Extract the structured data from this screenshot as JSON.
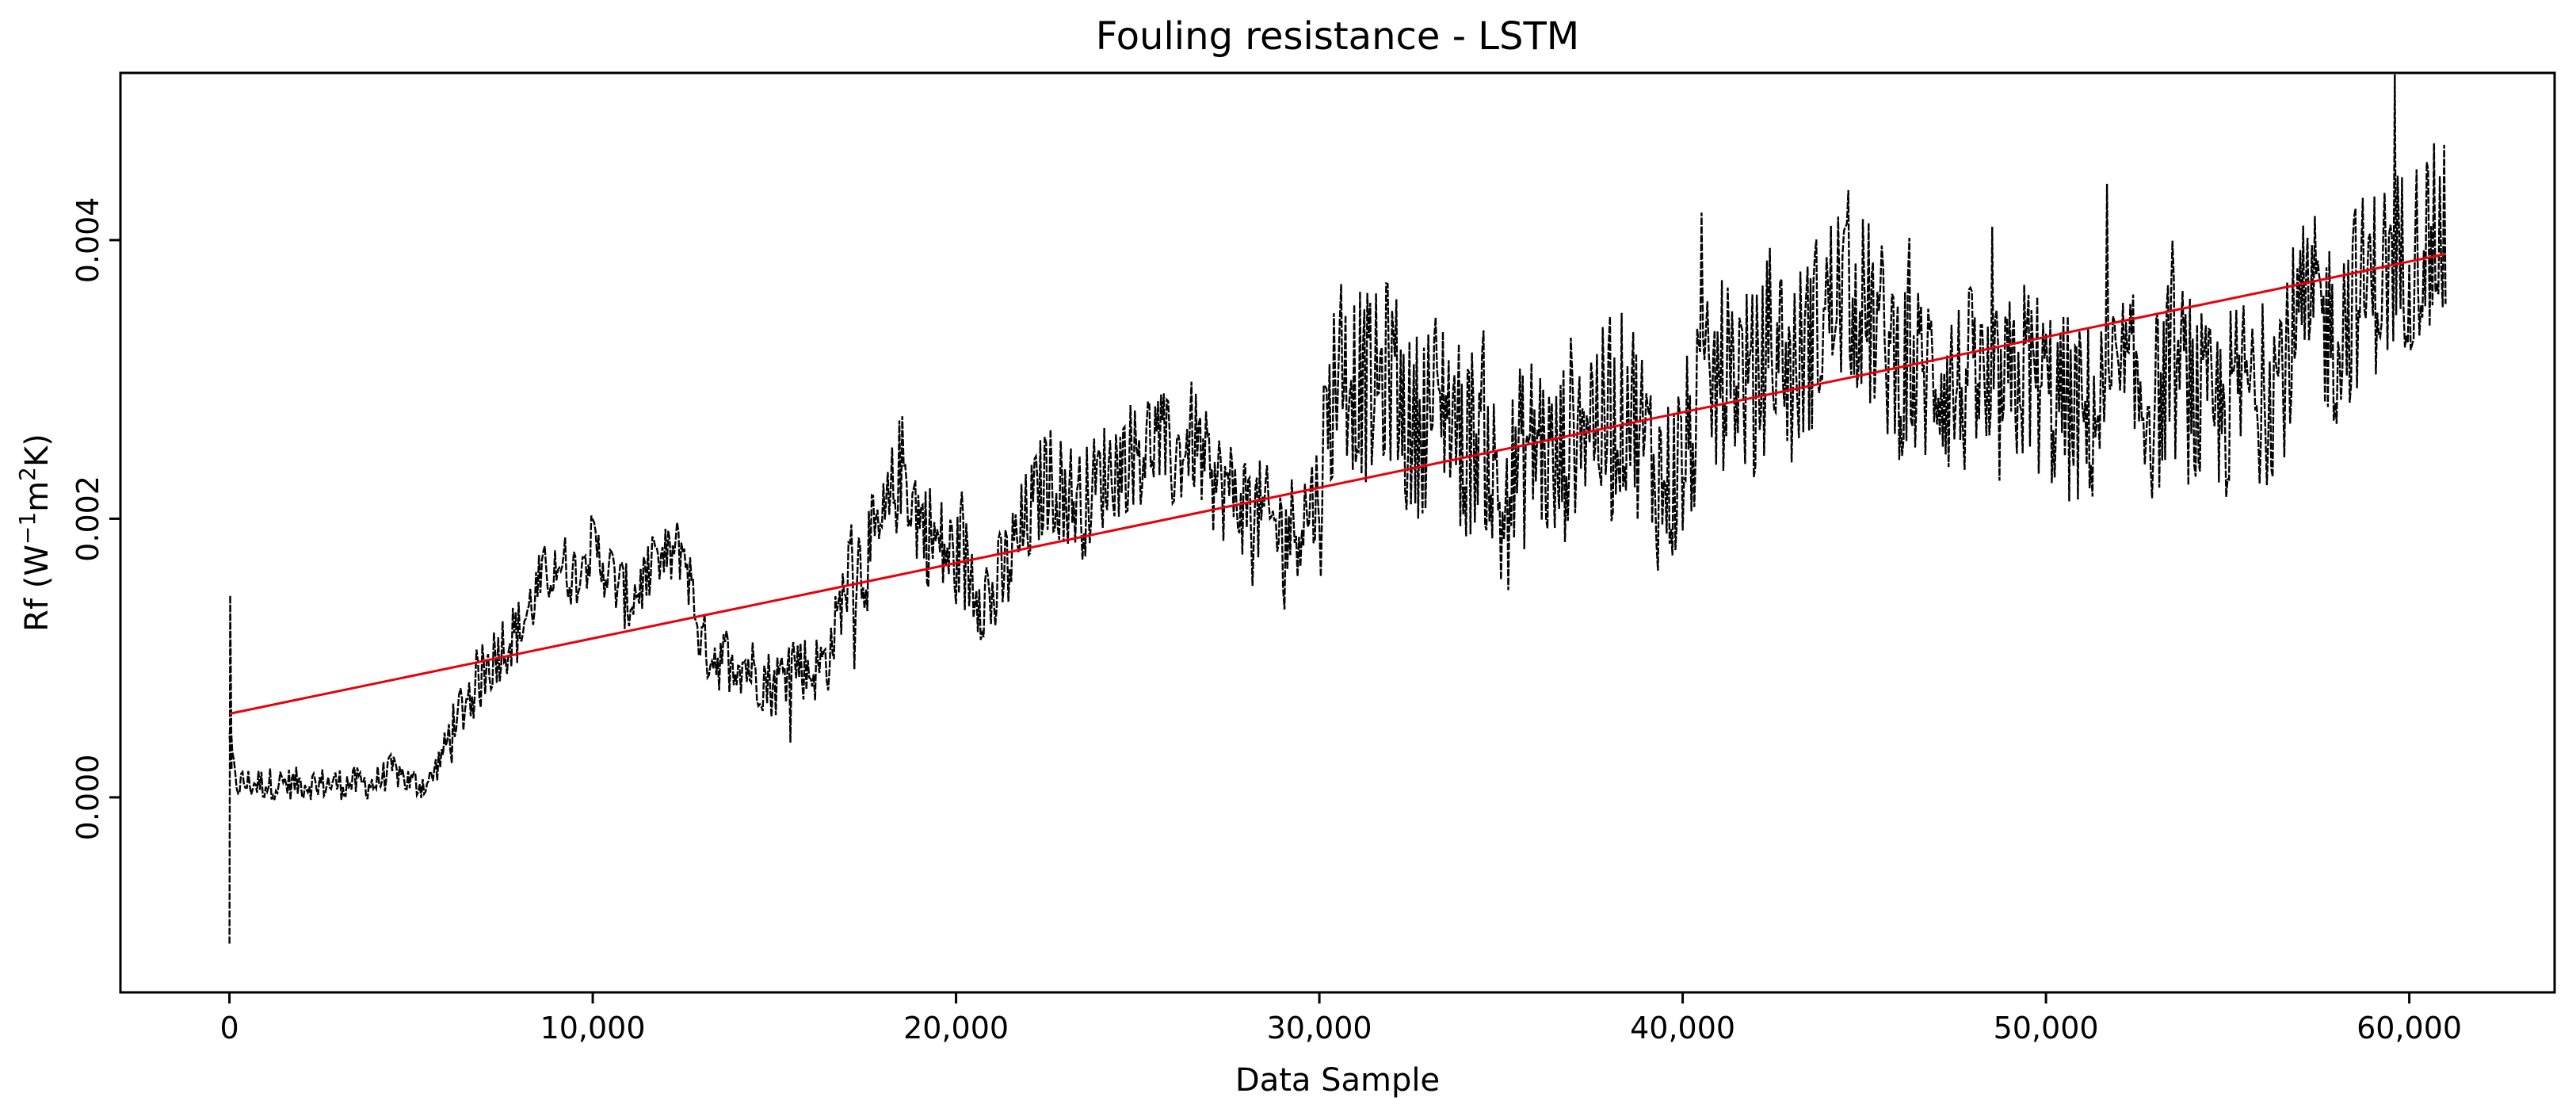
{
  "chart_data": {
    "type": "line",
    "title": "Fouling resistance - LSTM",
    "xlabel": "Data Sample",
    "ylabel": {
      "base": "Rf (W",
      "sup1": "−1",
      "mid": "m",
      "sup2": "2",
      "end": "K)"
    },
    "xlim": [
      -3000,
      64000
    ],
    "ylim": [
      -0.0014,
      0.0052
    ],
    "x_ticks": [
      0,
      10000,
      20000,
      30000,
      40000,
      50000,
      60000
    ],
    "x_tick_labels": [
      "0",
      "10,000",
      "20,000",
      "30,000",
      "40,000",
      "50,000",
      "60,000"
    ],
    "y_ticks": [
      0.0,
      0.002,
      0.004
    ],
    "y_tick_labels": [
      "0.000",
      "0.002",
      "0.004"
    ],
    "grid": false,
    "legend": "none",
    "series": [
      {
        "style": "black-dashed-noisy",
        "color": "#000000",
        "x": [
          0,
          150,
          400,
          1000,
          2000,
          3000,
          4000,
          4500,
          5000,
          5500,
          6000,
          6500,
          7000,
          7500,
          8000,
          8500,
          9000,
          9500,
          10000,
          10500,
          11000,
          11500,
          12000,
          12500,
          13000,
          13500,
          14000,
          14500,
          15000,
          15500,
          16000,
          16500,
          17000,
          17500,
          18000,
          18500,
          19000,
          19500,
          20000,
          20500,
          21000,
          21500,
          22000,
          22500,
          23000,
          23500,
          24000,
          24500,
          25000,
          25500,
          26000,
          26500,
          27000,
          27500,
          28000,
          28500,
          29000,
          29500,
          30000,
          30500,
          31000,
          31500,
          32000,
          32500,
          33000,
          33500,
          34000,
          34500,
          35000,
          35500,
          36000,
          36500,
          37000,
          37500,
          38000,
          38500,
          39000,
          39500,
          40000,
          40500,
          41000,
          41500,
          42000,
          42500,
          43000,
          43500,
          44000,
          44500,
          45000,
          45500,
          46000,
          46500,
          47000,
          47500,
          48000,
          48500,
          49000,
          49500,
          50000,
          50500,
          51000,
          51500,
          52000,
          52500,
          53000,
          53500,
          54000,
          54500,
          55000,
          55500,
          56000,
          56500,
          57000,
          57500,
          58000,
          58500,
          59000,
          59500,
          60000,
          60500,
          61000
        ],
        "values": [
          0.0005,
          0.0001,
          0.0001,
          0.0001,
          0.0001,
          0.0001,
          0.0001,
          0.0002,
          0.0001,
          0.0001,
          0.0004,
          0.0007,
          0.0009,
          0.0011,
          0.0012,
          0.0015,
          0.0017,
          0.0016,
          0.0018,
          0.0016,
          0.0014,
          0.0016,
          0.0017,
          0.0018,
          0.0011,
          0.001,
          0.001,
          0.0009,
          0.0008,
          0.001,
          0.0009,
          0.001,
          0.0016,
          0.0017,
          0.0019,
          0.0024,
          0.002,
          0.0018,
          0.0017,
          0.0016,
          0.0014,
          0.0017,
          0.002,
          0.0023,
          0.0022,
          0.0021,
          0.0023,
          0.0024,
          0.0025,
          0.0026,
          0.0024,
          0.0026,
          0.0023,
          0.0022,
          0.0021,
          0.002,
          0.0019,
          0.002,
          0.0022,
          0.0032,
          0.003,
          0.0029,
          0.0031,
          0.0026,
          0.0028,
          0.0029,
          0.0025,
          0.0027,
          0.002,
          0.0024,
          0.0026,
          0.0023,
          0.0027,
          0.0028,
          0.0026,
          0.0029,
          0.0025,
          0.0022,
          0.0024,
          0.0028,
          0.003,
          0.0031,
          0.0029,
          0.0034,
          0.003,
          0.0033,
          0.0035,
          0.0037,
          0.0035,
          0.0033,
          0.0031,
          0.003,
          0.0031,
          0.0029,
          0.003,
          0.0028,
          0.0029,
          0.0031,
          0.0029,
          0.0028,
          0.0027,
          0.0028,
          0.003,
          0.0029,
          0.0028,
          0.0031,
          0.0029,
          0.0027,
          0.0028,
          0.003,
          0.0029,
          0.0031,
          0.0034,
          0.0035,
          0.0033,
          0.0036,
          0.0037,
          0.0038,
          0.0039,
          0.004,
          0.004
        ]
      },
      {
        "style": "red-trend",
        "color": "#e8000b",
        "x": [
          0,
          61000
        ],
        "values": [
          0.0006,
          0.0039
        ]
      }
    ]
  }
}
